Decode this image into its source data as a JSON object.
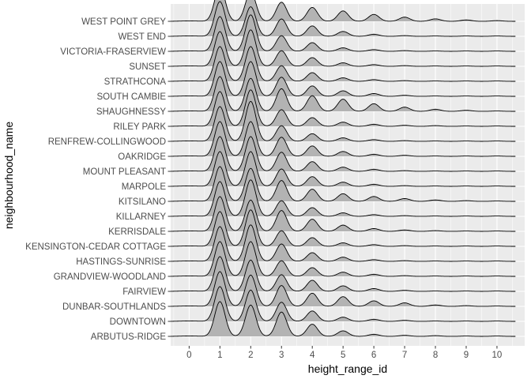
{
  "chart_data": {
    "type": "ridgeline",
    "xlabel": "height_range_id",
    "ylabel": "neighbourhood_name",
    "x_ticks": [
      0,
      1,
      2,
      3,
      4,
      5,
      6,
      7,
      8,
      9,
      10
    ],
    "xlim": [
      -0.6,
      10.9
    ],
    "grid": true,
    "legend": "none",
    "colors": {
      "panel": "#ebebeb",
      "grid_major": "#ffffff",
      "fill": "#b3b3b3",
      "line": "#000000",
      "tick_text": "#4d4d4d"
    },
    "categories": [
      "ARBUTUS-RIDGE",
      "DOWNTOWN",
      "DUNBAR-SOUTHLANDS",
      "FAIRVIEW",
      "GRANDVIEW-WOODLAND",
      "HASTINGS-SUNRISE",
      "KENSINGTON-CEDAR COTTAGE",
      "KERRISDALE",
      "KILLARNEY",
      "KITSILANO",
      "MARPOLE",
      "MOUNT PLEASANT",
      "OAKRIDGE",
      "RENFREW-COLLINGWOOD",
      "RILEY PARK",
      "SHAUGHNESSY",
      "SOUTH CAMBIE",
      "STRATHCONA",
      "SUNSET",
      "VICTORIA-FRASERVIEW",
      "WEST END",
      "WEST POINT GREY"
    ],
    "x_range": [
      -0.6,
      10.6
    ],
    "series": [
      {
        "name": "ARBUTUS-RIDGE",
        "peaks": [
          1.0,
          0.9,
          0.7,
          0.35,
          0.16,
          0.06,
          0.03,
          0.02,
          0.01,
          0.01
        ]
      },
      {
        "name": "DOWNTOWN",
        "peaks": [
          1.0,
          0.9,
          0.55,
          0.3,
          0.12,
          0.06,
          0.03,
          0.01,
          0.01,
          0.01
        ]
      },
      {
        "name": "DUNBAR-SOUTHLANDS",
        "peaks": [
          1.0,
          0.9,
          0.6,
          0.38,
          0.28,
          0.16,
          0.1,
          0.04,
          0.02,
          0.01
        ]
      },
      {
        "name": "FAIRVIEW",
        "peaks": [
          1.0,
          0.9,
          0.48,
          0.32,
          0.16,
          0.08,
          0.03,
          0.01,
          0.01,
          0.01
        ]
      },
      {
        "name": "GRANDVIEW-WOODLAND",
        "peaks": [
          1.0,
          1.0,
          0.45,
          0.25,
          0.12,
          0.06,
          0.02,
          0.01,
          0.01,
          0.01
        ]
      },
      {
        "name": "HASTINGS-SUNRISE",
        "peaks": [
          1.0,
          1.05,
          0.5,
          0.25,
          0.12,
          0.05,
          0.02,
          0.01,
          0.01,
          0.01
        ]
      },
      {
        "name": "KENSINGTON-CEDAR COTTAGE",
        "peaks": [
          1.0,
          1.05,
          0.45,
          0.25,
          0.1,
          0.05,
          0.02,
          0.01,
          0.01,
          0.01
        ]
      },
      {
        "name": "KERRISDALE",
        "peaks": [
          1.0,
          0.9,
          0.6,
          0.35,
          0.18,
          0.08,
          0.04,
          0.02,
          0.01,
          0.01
        ]
      },
      {
        "name": "KILLARNEY",
        "peaks": [
          1.0,
          1.05,
          0.45,
          0.25,
          0.1,
          0.05,
          0.02,
          0.01,
          0.01,
          0.01
        ]
      },
      {
        "name": "KITSILANO",
        "peaks": [
          1.0,
          0.95,
          0.6,
          0.35,
          0.22,
          0.14,
          0.08,
          0.04,
          0.02,
          0.01
        ]
      },
      {
        "name": "MARPOLE",
        "peaks": [
          1.0,
          1.0,
          0.5,
          0.28,
          0.12,
          0.06,
          0.02,
          0.01,
          0.01,
          0.01
        ]
      },
      {
        "name": "MOUNT PLEASANT",
        "peaks": [
          1.0,
          1.0,
          0.55,
          0.28,
          0.12,
          0.06,
          0.02,
          0.01,
          0.01,
          0.01
        ]
      },
      {
        "name": "OAKRIDGE",
        "peaks": [
          1.0,
          1.0,
          0.55,
          0.3,
          0.14,
          0.06,
          0.03,
          0.01,
          0.01,
          0.01
        ]
      },
      {
        "name": "RENFREW-COLLINGWOOD",
        "peaks": [
          1.0,
          1.15,
          0.45,
          0.22,
          0.1,
          0.05,
          0.02,
          0.01,
          0.01,
          0.01
        ]
      },
      {
        "name": "RILEY PARK",
        "peaks": [
          1.0,
          1.05,
          0.48,
          0.25,
          0.12,
          0.06,
          0.03,
          0.02,
          0.01,
          0.01
        ]
      },
      {
        "name": "SHAUGHNESSY",
        "peaks": [
          1.0,
          0.95,
          0.65,
          0.45,
          0.35,
          0.22,
          0.12,
          0.06,
          0.03,
          0.01
        ]
      },
      {
        "name": "SOUTH CAMBIE",
        "peaks": [
          1.0,
          1.0,
          0.55,
          0.3,
          0.16,
          0.08,
          0.03,
          0.01,
          0.01,
          0.01
        ]
      },
      {
        "name": "STRATHCONA",
        "peaks": [
          1.0,
          1.0,
          0.45,
          0.25,
          0.1,
          0.05,
          0.02,
          0.01,
          0.01,
          0.01
        ]
      },
      {
        "name": "SUNSET",
        "peaks": [
          1.0,
          1.05,
          0.45,
          0.25,
          0.1,
          0.05,
          0.02,
          0.01,
          0.01,
          0.01
        ]
      },
      {
        "name": "VICTORIA-FRASERVIEW",
        "peaks": [
          1.0,
          1.05,
          0.45,
          0.25,
          0.1,
          0.05,
          0.02,
          0.01,
          0.01,
          0.01
        ]
      },
      {
        "name": "WEST END",
        "peaks": [
          1.0,
          0.85,
          0.5,
          0.3,
          0.14,
          0.06,
          0.02,
          0.01,
          0.01,
          0.01
        ]
      },
      {
        "name": "WEST POINT GREY",
        "peaks": [
          1.0,
          0.85,
          0.55,
          0.4,
          0.3,
          0.2,
          0.12,
          0.07,
          0.04,
          0.02
        ]
      }
    ]
  }
}
